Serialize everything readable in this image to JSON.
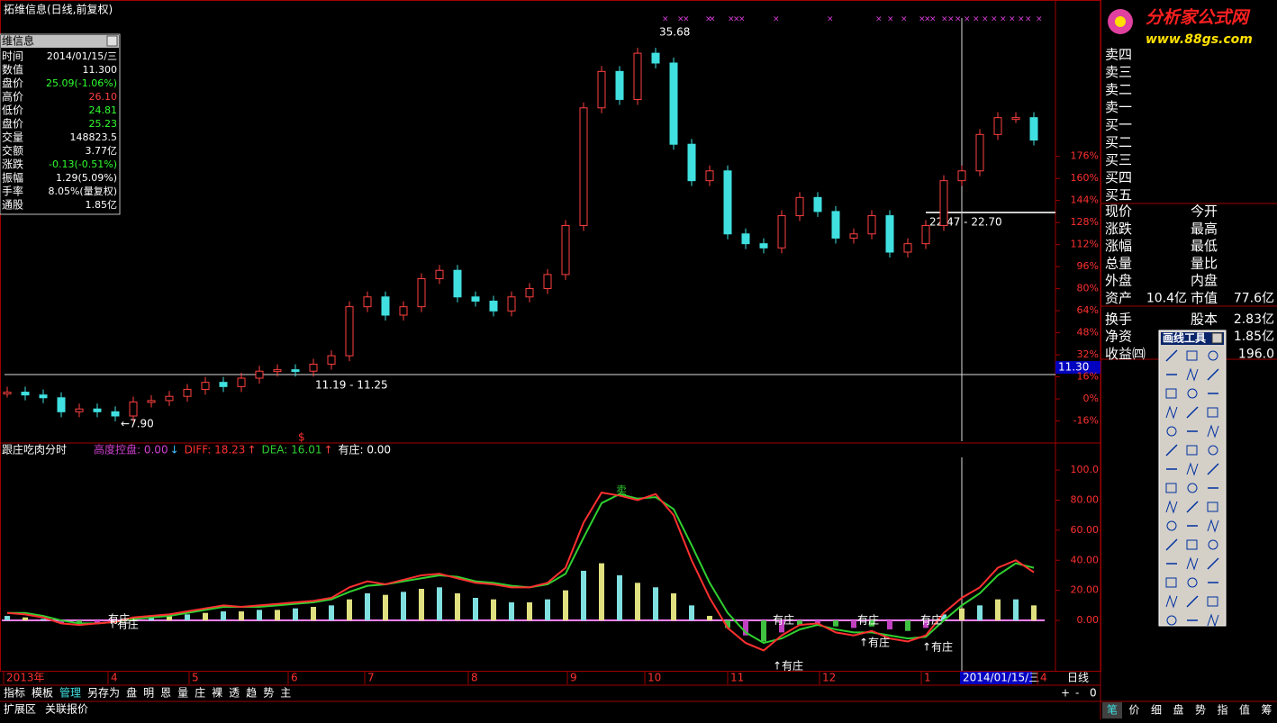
{
  "window_title": "拓维信息(日线,前复权)",
  "info_box": {
    "title": "维信息",
    "rows": [
      [
        "时间",
        "2014/01/15/三"
      ],
      [
        "数值",
        "11.300"
      ],
      [
        "盘价",
        "25.09(-1.06%)"
      ],
      [
        "高价",
        "26.10"
      ],
      [
        "低价",
        "24.81"
      ],
      [
        "盘价",
        "25.23"
      ],
      [
        "交量",
        "148823.5"
      ],
      [
        "交额",
        "3.77亿"
      ],
      [
        "涨跌",
        "-0.13(-0.51%)"
      ],
      [
        "振幅",
        "1.29(5.09%)"
      ],
      [
        "手率",
        "8.05%(量复权)"
      ],
      [
        "通股",
        "1.85亿"
      ]
    ]
  },
  "price_chart": {
    "ylim": [
      6.1,
      37.6
    ],
    "pct_ylim": [
      -30.7,
      289.5
    ],
    "pct_ticks": [
      {
        "value": 176,
        "label": "176%"
      },
      {
        "value": 160,
        "label": "160%"
      },
      {
        "value": 144,
        "label": "144%"
      },
      {
        "value": 128,
        "label": "128%"
      },
      {
        "value": 112,
        "label": "112%"
      },
      {
        "value": 96,
        "label": "96%"
      },
      {
        "value": 80,
        "label": "80%"
      },
      {
        "value": 64,
        "label": "64%"
      },
      {
        "value": 48,
        "label": "48%"
      },
      {
        "value": 32,
        "label": "32%"
      },
      {
        "value": 16,
        "label": "16%"
      },
      {
        "value": 0,
        "label": "0%"
      },
      {
        "value": -16,
        "label": "-16%"
      }
    ],
    "closes": [
      9.6,
      9.4,
      9.2,
      8.2,
      8.4,
      8.2,
      7.9,
      8.9,
      9.0,
      9.3,
      9.8,
      10.3,
      10.0,
      10.6,
      11.1,
      11.2,
      11.1,
      11.6,
      12.2,
      15.7,
      16.4,
      15.1,
      15.7,
      17.7,
      18.3,
      16.4,
      16.1,
      15.4,
      16.4,
      17.0,
      18.0,
      21.5,
      29.9,
      32.5,
      30.5,
      33.8,
      33.1,
      27.3,
      24.7,
      25.4,
      20.9,
      20.2,
      19.9,
      22.2,
      23.5,
      22.5,
      20.6,
      20.9,
      22.2,
      19.6,
      20.2,
      21.5,
      24.7,
      25.4,
      28.0,
      29.2,
      29.2,
      27.6
    ],
    "high_label": "35.68",
    "low_label": "←7.90",
    "range_label_1": "11.19 - 11.25",
    "range_label_2": "22.47 - 22.70",
    "cursor_value": "11.30",
    "signal": "$"
  },
  "indicator": {
    "name": "跟庄吃肉分时",
    "legend": [
      {
        "label": "高度控盘: 0.00",
        "arrow": "↓",
        "color": "#d040d0"
      },
      {
        "label": "DIFF: 18.23",
        "arrow": "↑",
        "color": "#ff3030"
      },
      {
        "label": "DEA: 16.01",
        "arrow": "↑",
        "color": "#30d030"
      },
      {
        "label": "有庄: 0.00",
        "arrow": "",
        "color": "#ffffff"
      }
    ],
    "ylim": [
      -33.5,
      118
    ],
    "yticks": [
      {
        "value": 0,
        "label": "0.00"
      },
      {
        "value": 20,
        "label": "20.00"
      },
      {
        "value": 40,
        "label": "40.00"
      },
      {
        "value": 60,
        "label": "60.00"
      },
      {
        "value": 80,
        "label": "80.00"
      },
      {
        "value": 100,
        "label": "100.0"
      }
    ],
    "diff": [
      5,
      4,
      2,
      -2,
      -3,
      -2,
      -1,
      2,
      3,
      4,
      6,
      8,
      10,
      9,
      10,
      11,
      12,
      13,
      15,
      22,
      26,
      24,
      27,
      30,
      31,
      28,
      25,
      24,
      22,
      22,
      25,
      35,
      65,
      85,
      83,
      80,
      84,
      70,
      40,
      15,
      -5,
      -15,
      -20,
      -10,
      -3,
      -2,
      -8,
      -10,
      -7,
      -12,
      -14,
      -10,
      5,
      15,
      22,
      35,
      40,
      32
    ],
    "dea": [
      5,
      5,
      3,
      0,
      -2,
      -2,
      -1,
      1,
      2,
      3,
      5,
      7,
      9,
      9,
      9,
      10,
      11,
      12,
      14,
      19,
      23,
      24,
      26,
      28,
      30,
      29,
      26,
      25,
      23,
      22,
      24,
      31,
      55,
      78,
      84,
      81,
      82,
      74,
      50,
      25,
      5,
      -8,
      -15,
      -12,
      -6,
      -3,
      -6,
      -8,
      -8,
      -10,
      -12,
      -11,
      0,
      10,
      18,
      30,
      38,
      35
    ],
    "hist": [
      3,
      2,
      1,
      -2,
      -3,
      -2,
      -1,
      1,
      2,
      3,
      4,
      5,
      6,
      6,
      7,
      7,
      8,
      9,
      10,
      14,
      18,
      17,
      19,
      21,
      22,
      18,
      15,
      14,
      12,
      12,
      14,
      20,
      33,
      38,
      30,
      25,
      22,
      18,
      10,
      3,
      -5,
      -10,
      -14,
      -8,
      -3,
      -2,
      -4,
      -5,
      -4,
      -6,
      -7,
      -5,
      4,
      8,
      10,
      14,
      14,
      10
    ],
    "signals": [
      "有庄",
      "↑有庄",
      "卖",
      "有庄",
      "↑有庄",
      "有庄",
      "↑有庄",
      "有庄",
      "↑有庄"
    ]
  },
  "x_axis": {
    "labels": [
      "2013年",
      "4",
      "5",
      "6",
      "7",
      "8",
      "9",
      "10",
      "11",
      "12",
      "1",
      "4"
    ],
    "cursor_date": "2014/01/15/三",
    "period": "日线"
  },
  "toolbar": [
    "指标",
    "模板",
    "管理",
    "另存为",
    "盘",
    "明",
    "恩",
    "量",
    "庄",
    "裸",
    "透",
    "趋",
    "势",
    "主"
  ],
  "bottom_tabs": [
    "扩展区",
    "关联报价"
  ],
  "zoom": [
    "+",
    "-",
    "0"
  ],
  "right_tabs": [
    "笔",
    "价",
    "细",
    "盘",
    "势",
    "指",
    "值",
    "筹"
  ],
  "quote_panel": {
    "order_book": [
      "卖四",
      "卖三",
      "卖二",
      "卖一",
      "买一",
      "买二",
      "买三",
      "买四",
      "买五"
    ],
    "rows": [
      [
        "现价",
        "",
        "今开",
        ""
      ],
      [
        "涨跌",
        "",
        "最高",
        ""
      ],
      [
        "涨幅",
        "",
        "最低",
        ""
      ],
      [
        "总量",
        "",
        "量比",
        ""
      ],
      [
        "外盘",
        "",
        "内盘",
        ""
      ],
      [
        "资产",
        "10.4亿",
        "市值",
        "77.6亿"
      ],
      [
        "换手",
        "",
        "股本",
        "2.83亿"
      ],
      [
        "净资",
        "",
        "",
        "1.85亿"
      ],
      [
        "收益㈣",
        "",
        "",
        "196.0"
      ]
    ]
  },
  "draw_tool": {
    "title": "画线工具"
  },
  "logo": {
    "name": "分析家公式网",
    "url": "www.88gs.com"
  }
}
